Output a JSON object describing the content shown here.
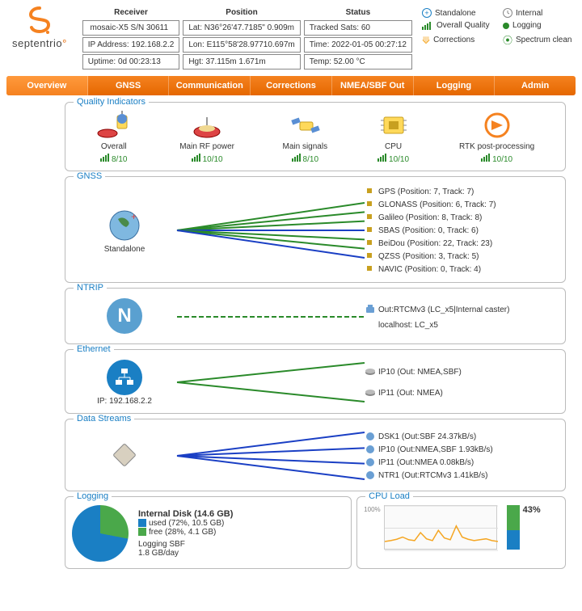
{
  "brand": "septentrio",
  "brand_color": "#f58220",
  "info": {
    "receiver": {
      "header": "Receiver",
      "rows": [
        {
          "k": "",
          "v": "mosaic-X5 S/N 30611"
        },
        {
          "k": "IP Address:",
          "v": "192.168.2.2"
        },
        {
          "k": "Uptime:",
          "v": "0d 00:23:13"
        }
      ]
    },
    "position": {
      "header": "Position",
      "rows": [
        {
          "k": "Lat:",
          "v": "N36°26'47.7185\" 0.909m"
        },
        {
          "k": "Lon:",
          "v": "E115°58'28.97710.697m"
        },
        {
          "k": "Hgt:",
          "v": "37.115m        1.671m"
        }
      ]
    },
    "status": {
      "header": "Status",
      "rows": [
        {
          "k": "Tracked Sats:",
          "v": "60"
        },
        {
          "k": "Time:",
          "v": "2022-01-05 00:27:12"
        },
        {
          "k": "Temp:",
          "v": "52.00 °C"
        }
      ]
    }
  },
  "legend": [
    [
      {
        "icon": "plus",
        "color": "#1a7fc4",
        "label": "Standalone"
      },
      {
        "icon": "clock",
        "color": "#888",
        "label": "Internal"
      }
    ],
    [
      {
        "icon": "bars",
        "color": "#2a8a2a",
        "label": "Overall Quality"
      },
      {
        "icon": "dot",
        "color": "#2a8a2a",
        "label": "Logging"
      }
    ],
    [
      {
        "icon": "down",
        "color": "#f5a623",
        "label": "Corrections"
      },
      {
        "icon": "wave",
        "color": "#2a8a2a",
        "label": "Spectrum clean"
      }
    ]
  ],
  "nav": [
    "Overview",
    "GNSS",
    "Communication",
    "Corrections",
    "NMEA/SBF Out",
    "Logging",
    "Admin"
  ],
  "nav_active": 0,
  "quality": {
    "title": "Quality Indicators",
    "items": [
      {
        "name": "Overall",
        "score": "8/10"
      },
      {
        "name": "Main RF power",
        "score": "10/10"
      },
      {
        "name": "Main signals",
        "score": "8/10"
      },
      {
        "name": "CPU",
        "score": "10/10"
      },
      {
        "name": "RTK post-processing",
        "score": "10/10"
      }
    ]
  },
  "gnss": {
    "title": "GNSS",
    "mode": "Standalone",
    "systems": [
      {
        "name": "GPS",
        "detail": "(Position: 7, Track: 7)",
        "color": "#2a8a2a"
      },
      {
        "name": "GLONASS",
        "detail": "(Position: 6, Track: 7)",
        "color": "#2a8a2a"
      },
      {
        "name": "Galileo",
        "detail": "(Position: 8, Track: 8)",
        "color": "#2a8a2a"
      },
      {
        "name": "SBAS",
        "detail": "(Position: 0, Track: 6)",
        "color": "#1a3fc4"
      },
      {
        "name": "BeiDou",
        "detail": "(Position: 22, Track: 23)",
        "color": "#2a8a2a"
      },
      {
        "name": "QZSS",
        "detail": "(Position: 3, Track: 5)",
        "color": "#2a8a2a"
      },
      {
        "name": "NAVIC",
        "detail": "(Position: 0, Track: 4)",
        "color": "#1a3fc4"
      }
    ]
  },
  "ntrip": {
    "title": "NTRIP",
    "left_icon_color": "#5aa0d0",
    "line_color": "#2a8a2a",
    "out": "Out:RTCMv3 (LC_x5|Internal caster)",
    "host": "localhost: LC_x5"
  },
  "ethernet": {
    "title": "Ethernet",
    "ip": "IP: 192.168.2.2",
    "icon_color": "#1a7fc4",
    "outputs": [
      {
        "name": "IP10",
        "detail": "(Out: NMEA,SBF)",
        "color": "#2a8a2a"
      },
      {
        "name": "IP11",
        "detail": "(Out: NMEA)",
        "color": "#2a8a2a"
      }
    ]
  },
  "datastreams": {
    "title": "Data Streams",
    "items": [
      {
        "name": "DSK1",
        "detail": "(Out:SBF 24.37kB/s)",
        "color": "#1a3fc4"
      },
      {
        "name": "IP10",
        "detail": "(Out:NMEA,SBF 1.93kB/s)",
        "color": "#1a3fc4"
      },
      {
        "name": "IP11",
        "detail": "(Out:NMEA 0.08kB/s)",
        "color": "#1a3fc4"
      },
      {
        "name": "NTR1",
        "detail": "(Out:RTCMv3 1.41kB/s)",
        "color": "#1a3fc4"
      }
    ]
  },
  "logging": {
    "title": "Logging",
    "disk_title": "Internal Disk (14.6 GB)",
    "used": {
      "label": "used (72%, 10.5 GB)",
      "color": "#1a7fc4",
      "pct": 72
    },
    "free": {
      "label": "free (28%, 4.1 GB)",
      "color": "#4aa84a",
      "pct": 28
    },
    "status": "Logging SBF",
    "rate": "1.8 GB/day"
  },
  "cpu": {
    "title": "CPU Load",
    "pct": "43%",
    "value": 43,
    "chart_color": "#f5a623",
    "grid_color": "#ddd",
    "bar_top_color": "#4aa84a",
    "bar_bot_color": "#1a7fc4",
    "samples": [
      20,
      22,
      25,
      30,
      24,
      22,
      40,
      26,
      22,
      45,
      28,
      24,
      55,
      30,
      25,
      22,
      24,
      26,
      22,
      20
    ]
  }
}
